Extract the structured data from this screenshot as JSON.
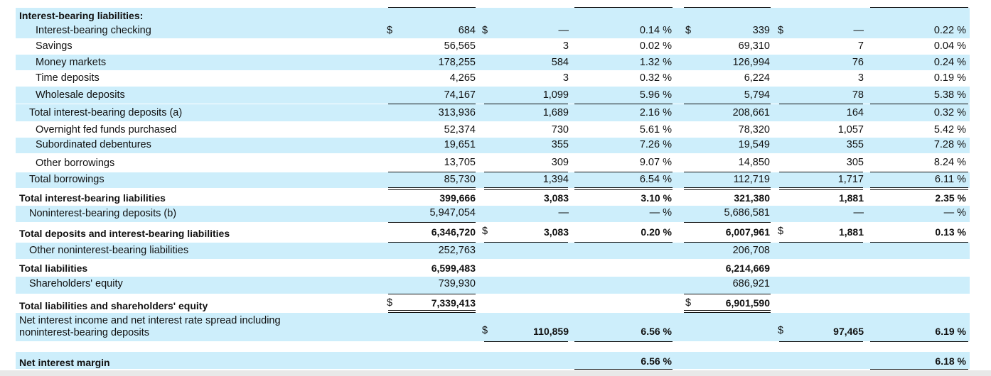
{
  "currency_symbol": "$",
  "section_header": "Interest-bearing liabilities:",
  "rows": [
    {
      "label": "Interest-bearing checking",
      "a": "684",
      "b": "—",
      "c": "0.14 %",
      "d": "339",
      "e": "—",
      "f": "0.22 %"
    },
    {
      "label": "Savings",
      "a": "56,565",
      "b": "3",
      "c": "0.02 %",
      "d": "69,310",
      "e": "7",
      "f": "0.04 %"
    },
    {
      "label": "Money markets",
      "a": "178,255",
      "b": "584",
      "c": "1.32 %",
      "d": "126,994",
      "e": "76",
      "f": "0.24 %"
    },
    {
      "label": "Time deposits",
      "a": "4,265",
      "b": "3",
      "c": "0.32 %",
      "d": "6,224",
      "e": "3",
      "f": "0.19 %"
    },
    {
      "label": "Wholesale deposits",
      "a": "74,167",
      "b": "1,099",
      "c": "5.96 %",
      "d": "5,794",
      "e": "78",
      "f": "5.38 %"
    },
    {
      "label": "Total interest-bearing deposits (a)",
      "a": "313,936",
      "b": "1,689",
      "c": "2.16 %",
      "d": "208,661",
      "e": "164",
      "f": "0.32 %"
    },
    {
      "label": "Overnight fed funds purchased",
      "a": "52,374",
      "b": "730",
      "c": "5.61 %",
      "d": "78,320",
      "e": "1,057",
      "f": "5.42 %"
    },
    {
      "label": "Subordinated debentures",
      "a": "19,651",
      "b": "355",
      "c": "7.26 %",
      "d": "19,549",
      "e": "355",
      "f": "7.28 %"
    },
    {
      "label": "Other borrowings",
      "a": "13,705",
      "b": "309",
      "c": "9.07 %",
      "d": "14,850",
      "e": "305",
      "f": "8.24 %"
    },
    {
      "label": "Total borrowings",
      "a": "85,730",
      "b": "1,394",
      "c": "6.54 %",
      "d": "112,719",
      "e": "1,717",
      "f": "6.11 %"
    },
    {
      "label": "Total interest-bearing liabilities",
      "a": "399,666",
      "b": "3,083",
      "c": "3.10 %",
      "d": "321,380",
      "e": "1,881",
      "f": "2.35 %"
    },
    {
      "label": "Noninterest-bearing deposits (b)",
      "a": "5,947,054",
      "b": "—",
      "c": "— %",
      "d": "5,686,581",
      "e": "—",
      "f": "— %"
    },
    {
      "label": "Total deposits and interest-bearing liabilities",
      "a": "6,346,720",
      "b": "3,083",
      "c": "0.20 %",
      "d": "6,007,961",
      "e": "1,881",
      "f": "0.13 %"
    },
    {
      "label": "Other noninterest-bearing liabilities",
      "a": "252,763",
      "b": "",
      "c": "",
      "d": "206,708",
      "e": "",
      "f": ""
    },
    {
      "label": "Total liabilities",
      "a": "6,599,483",
      "b": "",
      "c": "",
      "d": "6,214,669",
      "e": "",
      "f": ""
    },
    {
      "label": "Shareholders' equity",
      "a": "739,930",
      "b": "",
      "c": "",
      "d": "686,921",
      "e": "",
      "f": ""
    },
    {
      "label": "Total liabilities and shareholders' equity",
      "a": "7,339,413",
      "b": "",
      "c": "",
      "d": "6,901,590",
      "e": "",
      "f": ""
    }
  ],
  "nii_label_line1": "Net interest income and net interest rate spread including",
  "nii_label_line2": "noninterest-bearing deposits",
  "nii": {
    "b": "110,859",
    "c": "6.56 %",
    "e": "97,465",
    "f": "6.19 %"
  },
  "nim": {
    "label": "Net interest margin",
    "c": "6.56 %",
    "f": "6.18 %"
  }
}
